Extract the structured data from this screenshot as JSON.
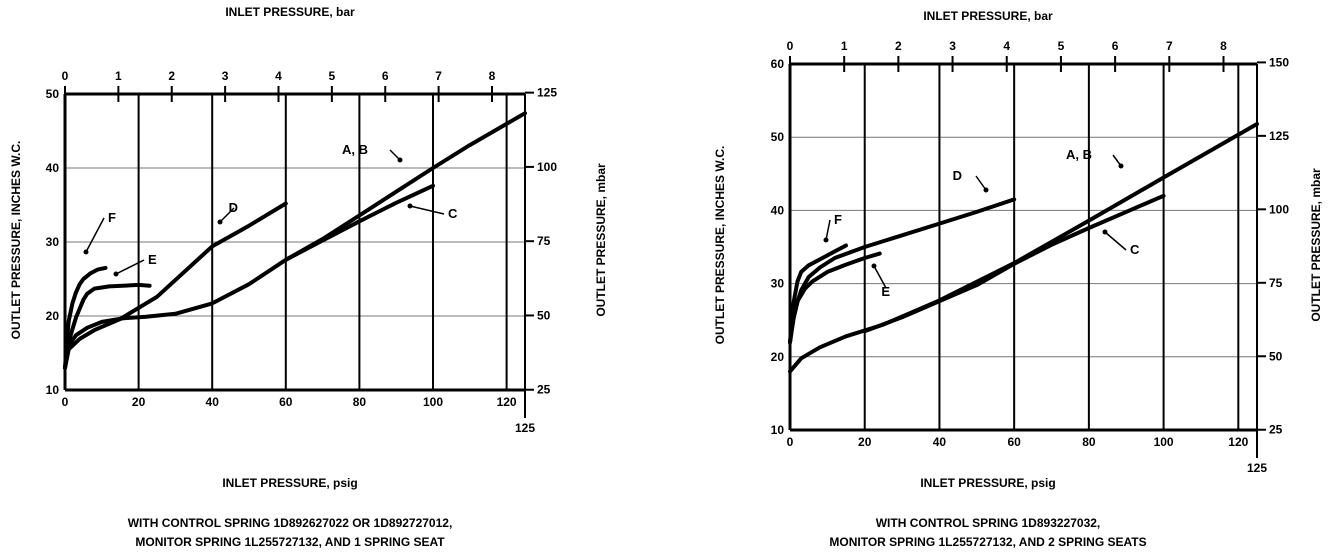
{
  "chart_data": [
    {
      "type": "line",
      "title": "INLET PRESSURE, bar",
      "xlabel": "INLET PRESSURE, psig",
      "ylabel": "OUTLET PRESSURE, INCHES W.C.",
      "ylabel_right": "OUTLET PRESSURE, mbar",
      "caption_lines": [
        "WITH CONTROL SPRING 1D892627022 OR 1D892727012,",
        "MONITOR SPRING 1L255727132, AND 1 SPRING SEAT"
      ],
      "xlim": [
        0,
        125
      ],
      "ylim": [
        10,
        50
      ],
      "x_ticks": [
        0,
        20,
        40,
        60,
        80,
        100,
        120
      ],
      "x_end_label": "125",
      "y_ticks": [
        10,
        20,
        30,
        40,
        50
      ],
      "top_ticks": [
        0,
        1,
        2,
        3,
        4,
        5,
        6,
        7,
        8
      ],
      "right_ticks": [
        25,
        50,
        75,
        100,
        125
      ],
      "grid": true,
      "series": [
        {
          "name": "A, B",
          "x": [
            0,
            1,
            3,
            6,
            10,
            16,
            22,
            30,
            40,
            50,
            60,
            70,
            80,
            90,
            100,
            110,
            125
          ],
          "y": [
            13,
            16,
            17.4,
            18.4,
            19.2,
            19.7,
            19.9,
            20.3,
            21.7,
            24.3,
            27.6,
            30.4,
            33.6,
            36.8,
            40,
            43.1,
            47.4
          ]
        },
        {
          "name": "C",
          "x": [
            60,
            70,
            80,
            90,
            100
          ],
          "y": [
            27.6,
            30.2,
            32.8,
            35.3,
            37.6
          ]
        },
        {
          "name": "D",
          "x": [
            0,
            1,
            4,
            8,
            15,
            25,
            40,
            50,
            60
          ],
          "y": [
            13,
            15.5,
            16.9,
            18.1,
            19.6,
            22.6,
            29.4,
            32.2,
            35.2
          ]
        },
        {
          "name": "E",
          "x": [
            0,
            1,
            2,
            3,
            4,
            5,
            6,
            8,
            12,
            20,
            23
          ],
          "y": [
            13,
            16.5,
            18.2,
            19.8,
            21,
            22.2,
            23,
            23.7,
            24,
            24.2,
            24.1
          ]
        },
        {
          "name": "F",
          "x": [
            0,
            0.5,
            1,
            2,
            3,
            4,
            5,
            7,
            9,
            11
          ],
          "y": [
            13,
            16.5,
            19.3,
            21.7,
            23.2,
            24.3,
            25,
            25.8,
            26.3,
            26.5
          ]
        }
      ]
    },
    {
      "type": "line",
      "title": "INLET PRESSURE, bar",
      "xlabel": "INLET PRESSURE, psig",
      "ylabel": "OUTLET PRESSURE, INCHES W.C.",
      "ylabel_right": "OUTLET PRESSURE, mbar",
      "caption_lines": [
        "WITH CONTROL SPRING 1D893227032,",
        "MONITOR SPRING 1L255727132, AND 2 SPRING SEATS"
      ],
      "xlim": [
        0,
        125
      ],
      "ylim": [
        10,
        60
      ],
      "x_ticks": [
        0,
        20,
        40,
        60,
        80,
        100,
        120
      ],
      "x_end_label": "125",
      "y_ticks": [
        10,
        20,
        30,
        40,
        50,
        60
      ],
      "top_ticks": [
        0,
        1,
        2,
        3,
        4,
        5,
        6,
        7,
        8
      ],
      "right_ticks": [
        25,
        50,
        75,
        100,
        125,
        150
      ],
      "grid": true,
      "series": [
        {
          "name": "A, B",
          "x": [
            0,
            3,
            8,
            15,
            25,
            40,
            60,
            80,
            100,
            125
          ],
          "y": [
            18,
            19.8,
            21.3,
            22.8,
            24.4,
            27.7,
            32.8,
            38.6,
            44.5,
            51.8
          ]
        },
        {
          "name": "C",
          "x": [
            20,
            30,
            40,
            50,
            60,
            70,
            80,
            90,
            100
          ],
          "y": [
            23.5,
            25.4,
            27.6,
            29.8,
            32.7,
            35.3,
            37.6,
            39.8,
            42
          ]
        },
        {
          "name": "D",
          "x": [
            0,
            1,
            2,
            3,
            5,
            8,
            12,
            20,
            30,
            40,
            50,
            60
          ],
          "y": [
            22,
            25.3,
            27.5,
            29.1,
            30.9,
            32.2,
            33.5,
            35,
            36.6,
            38.2,
            39.8,
            41.5
          ]
        },
        {
          "name": "E",
          "x": [
            0,
            1,
            2,
            4,
            6,
            10,
            15,
            20,
            24
          ],
          "y": [
            22,
            25.8,
            27.6,
            29.3,
            30.3,
            31.6,
            32.6,
            33.5,
            34.1
          ]
        },
        {
          "name": "F",
          "x": [
            0,
            1,
            2,
            3,
            5,
            8,
            12,
            15
          ],
          "y": [
            22,
            27.5,
            30.3,
            31.6,
            32.5,
            33.3,
            34.4,
            35.2
          ]
        }
      ]
    }
  ]
}
